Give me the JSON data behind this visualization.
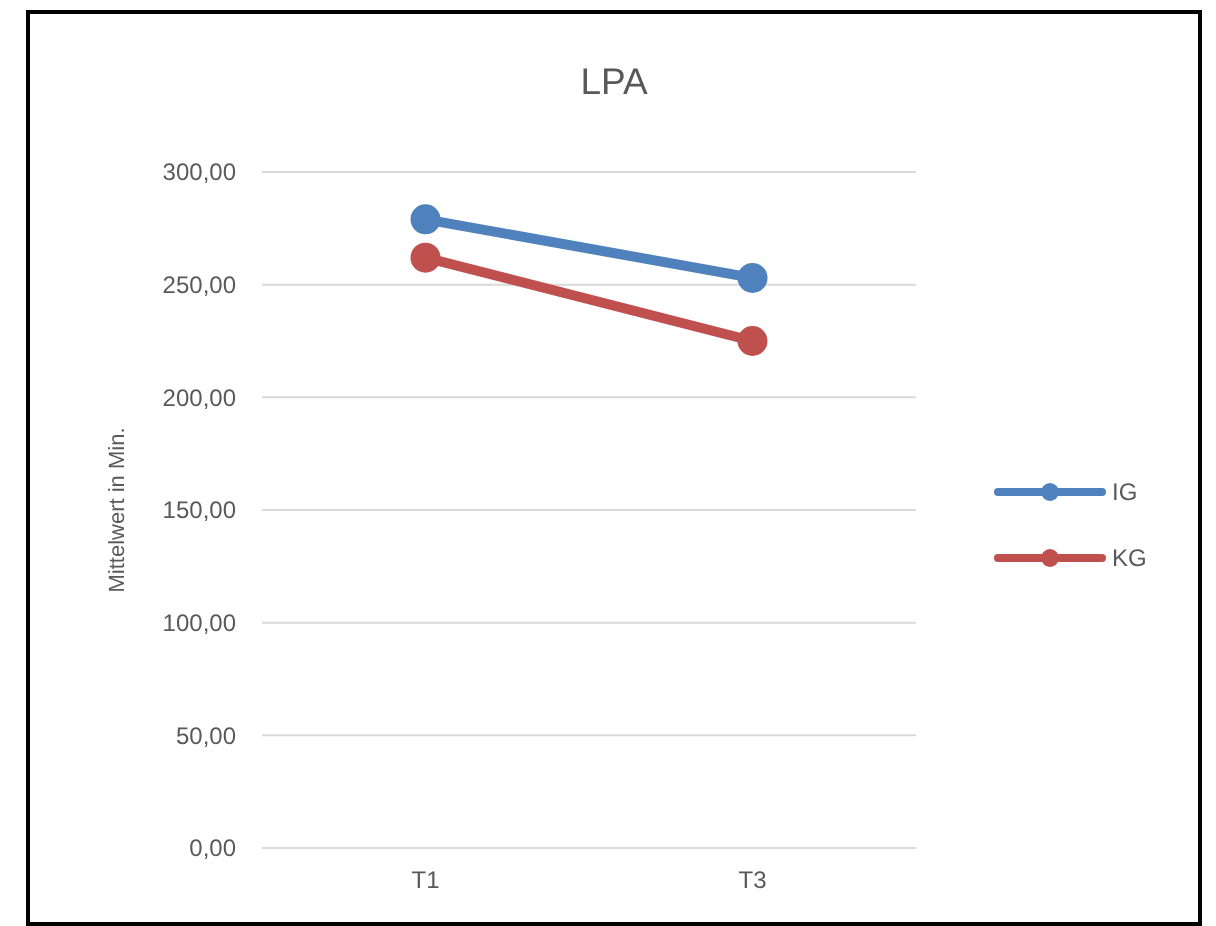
{
  "chart_data": {
    "type": "line",
    "title": "LPA",
    "ylabel": "Mittelwert in Min.",
    "categories": [
      "T1",
      "T3"
    ],
    "series": [
      {
        "name": "IG",
        "color": "#4f81bd",
        "values": [
          279,
          253
        ]
      },
      {
        "name": "KG",
        "color": "#c0504d",
        "values": [
          262,
          225
        ]
      }
    ],
    "ylim": [
      0,
      300
    ],
    "yticks": [
      {
        "value": 0,
        "label": "0,00"
      },
      {
        "value": 50,
        "label": "50,00"
      },
      {
        "value": 100,
        "label": "100,00"
      },
      {
        "value": 150,
        "label": "150,00"
      },
      {
        "value": 200,
        "label": "200,00"
      },
      {
        "value": 250,
        "label": "250,00"
      },
      {
        "value": 300,
        "label": "300,00"
      }
    ],
    "grid": "y",
    "legend": "right",
    "marker": "circle"
  }
}
